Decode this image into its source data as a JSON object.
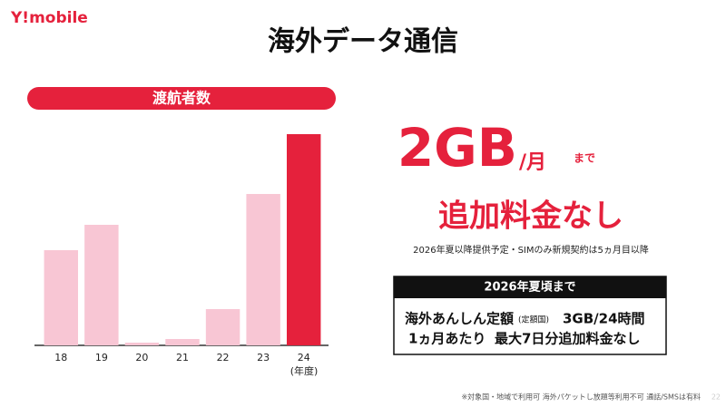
{
  "logo": "Y!mobile",
  "title": "海外データ通信",
  "offer": {
    "amount": "2GB",
    "per": "/月",
    "until": "まで",
    "headline": "追加料金なし",
    "note": "2026年夏以降提供予定・SIMのみ新規契約は5ヵ月目以降"
  },
  "box": {
    "header": "2026年夏頃まで",
    "line1": "海外あんしん定額",
    "line1_small": "(定額国)",
    "line1_end": "3GB/24時間",
    "line2_start": "1ヵ月あたり",
    "line2_small": "最大7日分追加料金なし"
  },
  "footnote": "※対象国・地域で利用可 海外パケットし放題等利用不可 通話/SMSは有料",
  "page_number": "22",
  "chart_data": {
    "type": "bar",
    "title": "渡航者数",
    "x_label": "(年度)",
    "categories": [
      "18",
      "19",
      "20",
      "21",
      "22",
      "23",
      "24"
    ],
    "values": [
      105,
      133,
      3,
      7,
      40,
      167,
      233
    ],
    "colors": [
      "#f8c6d4",
      "#f8c6d4",
      "#f8c6d4",
      "#f8c6d4",
      "#f8c6d4",
      "#f8c6d4",
      "#e5213c"
    ],
    "ylim": [
      0,
      250
    ]
  }
}
